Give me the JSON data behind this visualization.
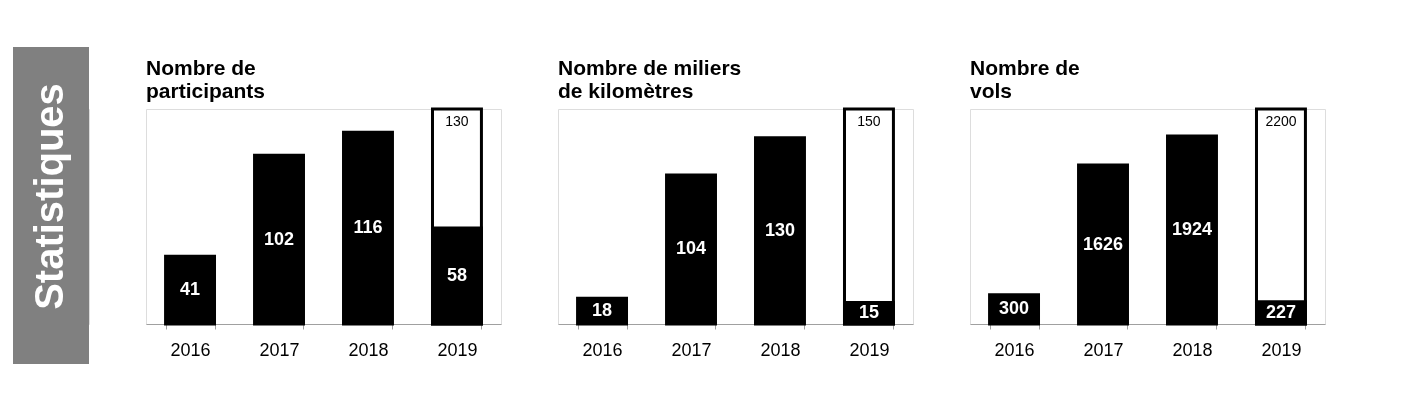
{
  "chart_data": [
    {
      "type": "other",
      "title": "Statistiques"
    },
    {
      "type": "bar",
      "title": "Nombre de\nparticipants",
      "categories": [
        "2016",
        "2017",
        "2018",
        "2019"
      ],
      "series": [
        {
          "color": "#ffffff",
          "values": [
            null,
            null,
            null,
            130
          ]
        },
        {
          "color": "#000000",
          "values": [
            41,
            102,
            116,
            58
          ]
        }
      ],
      "data_labels": true,
      "grid": false
    },
    {
      "type": "bar",
      "title": "Nombre de miliers\nde kilomètres",
      "categories": [
        "2016",
        "2017",
        "2018",
        "2019"
      ],
      "series": [
        {
          "color": "#ffffff",
          "values": [
            null,
            null,
            null,
            150
          ]
        },
        {
          "color": "#000000",
          "values": [
            18,
            104,
            130,
            15
          ]
        }
      ],
      "data_labels": true,
      "grid": false
    },
    {
      "type": "bar",
      "title": "Nombre de\nvols",
      "categories": [
        "2016",
        "2017",
        "2018",
        "2019"
      ],
      "series": [
        {
          "color": "#ffffff",
          "values": [
            null,
            null,
            null,
            2200
          ]
        },
        {
          "color": "#000000",
          "values": [
            300,
            1626,
            1924,
            227
          ]
        }
      ],
      "data_labels": true,
      "grid": false
    }
  ]
}
